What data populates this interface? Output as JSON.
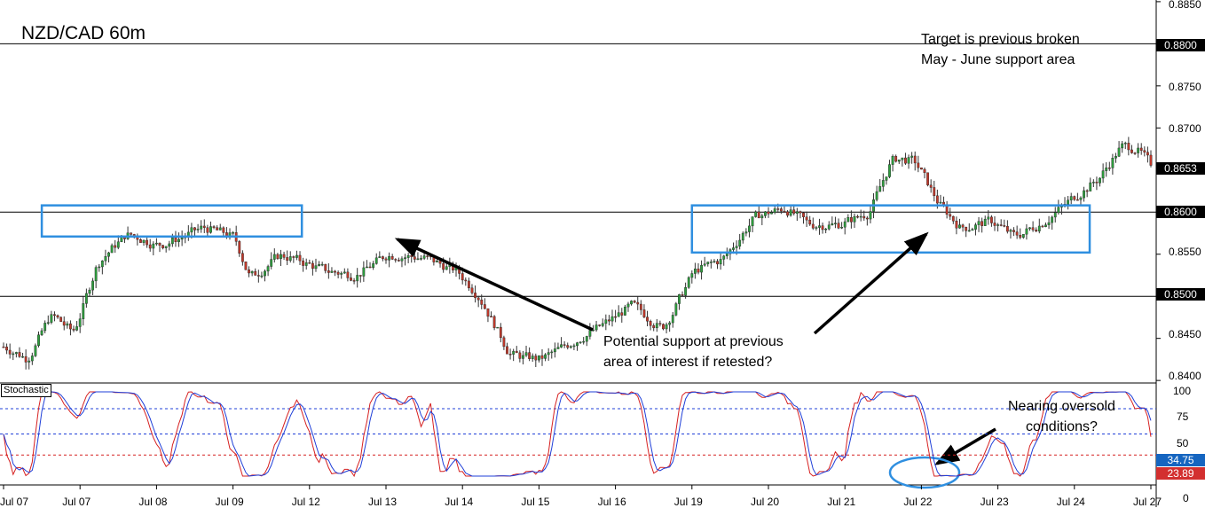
{
  "title": "NZD/CAD 60m",
  "annotations": {
    "target": [
      "Target is previous broken",
      "May - June support area"
    ],
    "support": [
      "Potential support at previous",
      "area of interest if retested?"
    ],
    "oversold": [
      "Nearing oversold",
      "conditions?"
    ]
  },
  "oscillator_label": "Stochastic",
  "colors": {
    "bull_candle": "#2e9e3e",
    "bear_candle": "#c0392b",
    "zone_box": "#2f8fe0",
    "stoch_main": "#d62020",
    "stoch_signal": "#1f3fd8",
    "tag_dark": "#000000",
    "tag_blue": "#1565c0",
    "tag_red": "#d32f2f"
  },
  "chart_data": [
    {
      "type": "candlestick",
      "title": "NZD/CAD 60m",
      "y_ticks": [
        "0.8850",
        "0.8800",
        "0.8750",
        "0.8700",
        "0.8653",
        "0.8600",
        "0.8550",
        "0.8500",
        "0.8450",
        "0.8400"
      ],
      "ylim": [
        0.8397,
        0.8852
      ],
      "x_ticks": [
        "Jul 07",
        "Jul 07",
        "Jul 08",
        "Jul 09",
        "Jul 12",
        "Jul 13",
        "Jul 14",
        "Jul 15",
        "Jul 16",
        "Jul 19",
        "Jul 20",
        "Jul 21",
        "Jul 22",
        "Jul 23",
        "Jul 24",
        "Jul 27"
      ],
      "horizontal_levels": [
        0.88,
        0.86,
        0.85
      ],
      "last_price": 0.8653,
      "price_tags": [
        {
          "value": "0.8800",
          "style": "dark"
        },
        {
          "value": "0.8653",
          "style": "dark"
        },
        {
          "value": "0.8600",
          "style": "dark"
        },
        {
          "value": "0.8500",
          "style": "dark"
        }
      ],
      "zones": [
        {
          "x_start": 0.5,
          "x_end": 3.9,
          "y_low": 0.8571,
          "y_high": 0.8608
        },
        {
          "x_start": 9.0,
          "x_end": 14.2,
          "y_low": 0.8552,
          "y_high": 0.8608
        }
      ],
      "path_anchors": [
        [
          0,
          0.844
        ],
        [
          0.3,
          0.8425
        ],
        [
          0.6,
          0.848
        ],
        [
          0.9,
          0.8455
        ],
        [
          1.2,
          0.854
        ],
        [
          1.6,
          0.8575
        ],
        [
          2.0,
          0.856
        ],
        [
          2.3,
          0.857
        ],
        [
          2.6,
          0.8582
        ],
        [
          3.0,
          0.857
        ],
        [
          3.2,
          0.852
        ],
        [
          3.6,
          0.855
        ],
        [
          4.2,
          0.853
        ],
        [
          4.6,
          0.8525
        ],
        [
          5.0,
          0.855
        ],
        [
          5.5,
          0.8545
        ],
        [
          5.9,
          0.853
        ],
        [
          6.2,
          0.85
        ],
        [
          6.6,
          0.843
        ],
        [
          7.0,
          0.8425
        ],
        [
          7.4,
          0.8445
        ],
        [
          7.8,
          0.8465
        ],
        [
          8.2,
          0.849
        ],
        [
          8.6,
          0.846
        ],
        [
          9.0,
          0.853
        ],
        [
          9.4,
          0.8545
        ],
        [
          9.8,
          0.8595
        ],
        [
          10.2,
          0.8605
        ],
        [
          10.5,
          0.8585
        ],
        [
          10.9,
          0.8585
        ],
        [
          11.3,
          0.86
        ],
        [
          11.6,
          0.8665
        ],
        [
          11.9,
          0.866
        ],
        [
          12.2,
          0.861
        ],
        [
          12.5,
          0.858
        ],
        [
          12.9,
          0.859
        ],
        [
          13.2,
          0.857
        ],
        [
          13.6,
          0.859
        ],
        [
          14.0,
          0.862
        ],
        [
          14.3,
          0.864
        ],
        [
          14.6,
          0.868
        ],
        [
          14.8,
          0.8675
        ],
        [
          15.0,
          0.8653
        ]
      ]
    },
    {
      "type": "line",
      "title": "Stochastic",
      "y_ticks": [
        "100",
        "75",
        "50",
        "0"
      ],
      "ylim": [
        0,
        100
      ],
      "levels": [
        {
          "value": 80,
          "color": "blue"
        },
        {
          "value": 50,
          "color": "blue"
        },
        {
          "value": 25,
          "color": "red"
        }
      ],
      "series": [
        {
          "name": "",
          "last_value": "34.75",
          "tag_style": "blue"
        },
        {
          "name": "",
          "last_value": "23.89",
          "tag_style": "red"
        }
      ],
      "x_ticks": [
        "Jul 07",
        "Jul 07",
        "Jul 08",
        "Jul 09",
        "Jul 12",
        "Jul 13",
        "Jul 14",
        "Jul 15",
        "Jul 16",
        "Jul 19",
        "Jul 20",
        "Jul 21",
        "Jul 22",
        "Jul 23",
        "Jul 24",
        "Jul 27"
      ]
    }
  ]
}
